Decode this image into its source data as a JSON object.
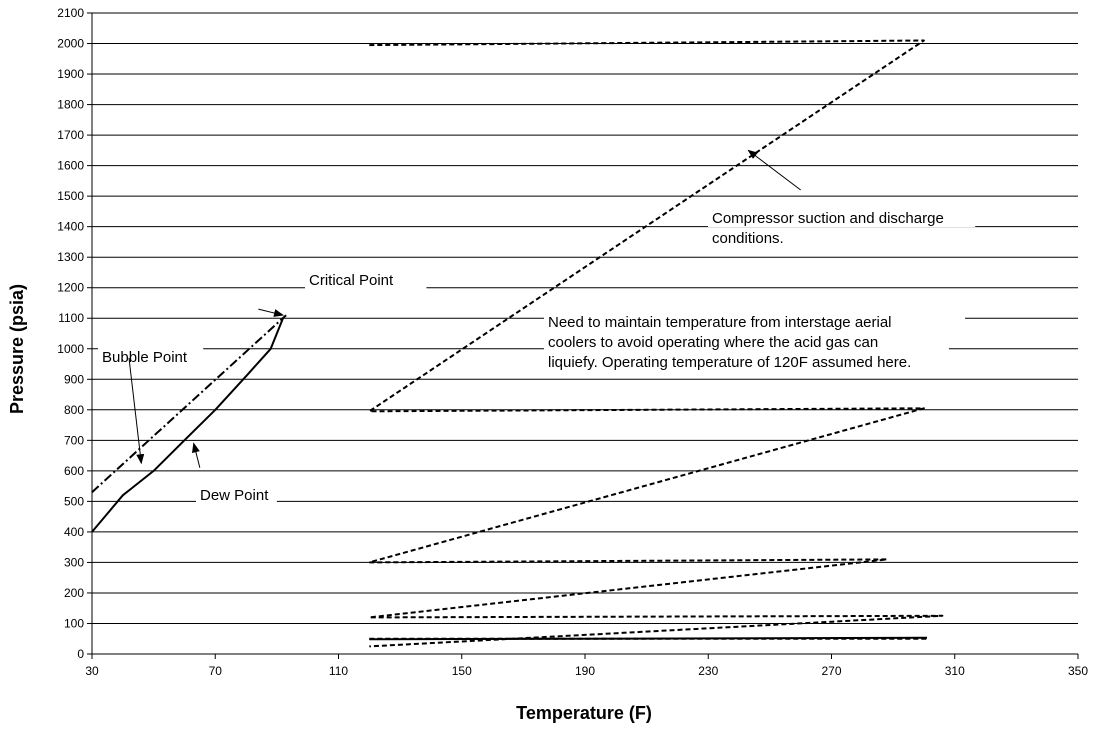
{
  "chart_data": {
    "type": "line",
    "title": "",
    "xlabel": "Temperature (F)",
    "ylabel": "Pressure (psia)",
    "xlim": [
      30,
      350
    ],
    "ylim": [
      0,
      2100
    ],
    "x_ticks": [
      30,
      70,
      110,
      150,
      190,
      230,
      270,
      310,
      350
    ],
    "y_ticks": [
      0,
      100,
      200,
      300,
      400,
      500,
      600,
      700,
      800,
      900,
      1000,
      1100,
      1200,
      1300,
      1400,
      1500,
      1600,
      1700,
      1800,
      1900,
      2000,
      2100
    ],
    "grid": "horizontal",
    "legend": "none",
    "series": [
      {
        "style": "solid",
        "points": [
          [
            30,
            400
          ],
          [
            35,
            460
          ],
          [
            40,
            520
          ],
          [
            50,
            600
          ],
          [
            60,
            700
          ],
          [
            70,
            800
          ],
          [
            80,
            910
          ],
          [
            88,
            1000
          ],
          [
            92,
            1100
          ]
        ]
      },
      {
        "style": "dashdot",
        "points": [
          [
            30,
            530
          ],
          [
            93,
            1110
          ]
        ]
      },
      {
        "style": "dashed",
        "points": [
          [
            120,
            1995
          ],
          [
            120,
            1995
          ],
          [
            300,
            2010
          ],
          [
            120,
            795
          ],
          [
            300,
            805
          ],
          [
            120,
            300
          ],
          [
            288,
            310
          ],
          [
            120,
            120
          ],
          [
            306,
            125
          ],
          [
            120,
            25
          ]
        ]
      },
      {
        "style": "dashed",
        "points": [
          [
            120,
            50
          ],
          [
            301,
            50
          ]
        ]
      },
      {
        "style": "solid",
        "points": [
          [
            120,
            48
          ],
          [
            301,
            53
          ]
        ]
      }
    ],
    "annotations": [
      {
        "id": "critical",
        "text": "Critical Point",
        "lines": [
          "Critical Point"
        ],
        "arrow_from": [
          84,
          1130
        ],
        "arrow_to": [
          92,
          1110
        ]
      },
      {
        "id": "bubble",
        "text": "Bubble Point",
        "lines": [
          "Bubble Point"
        ],
        "arrow_from": [
          42,
          970
        ],
        "arrow_to": [
          46,
          625
        ]
      },
      {
        "id": "dew",
        "text": "Dew Point",
        "lines": [
          "Dew Point"
        ],
        "arrow_from": [
          65,
          610
        ],
        "arrow_to": [
          63,
          690
        ]
      },
      {
        "id": "compressor",
        "text": "Compressor suction and discharge conditions.",
        "lines": [
          "Compressor suction and discharge",
          "conditions."
        ],
        "arrow_from": [
          260,
          1520
        ],
        "arrow_to": [
          243,
          1650
        ]
      },
      {
        "id": "interstage",
        "text": "Need to maintain temperature from interstage aerial coolers to avoid operating where the acid gas can liquiefy.  Operating temperature of 120F assumed here.",
        "lines": [
          "Need to maintain temperature from interstage aerial",
          "coolers to avoid operating where the acid gas can",
          "liquiefy.  Operating temperature of 120F assumed here."
        ]
      }
    ]
  }
}
